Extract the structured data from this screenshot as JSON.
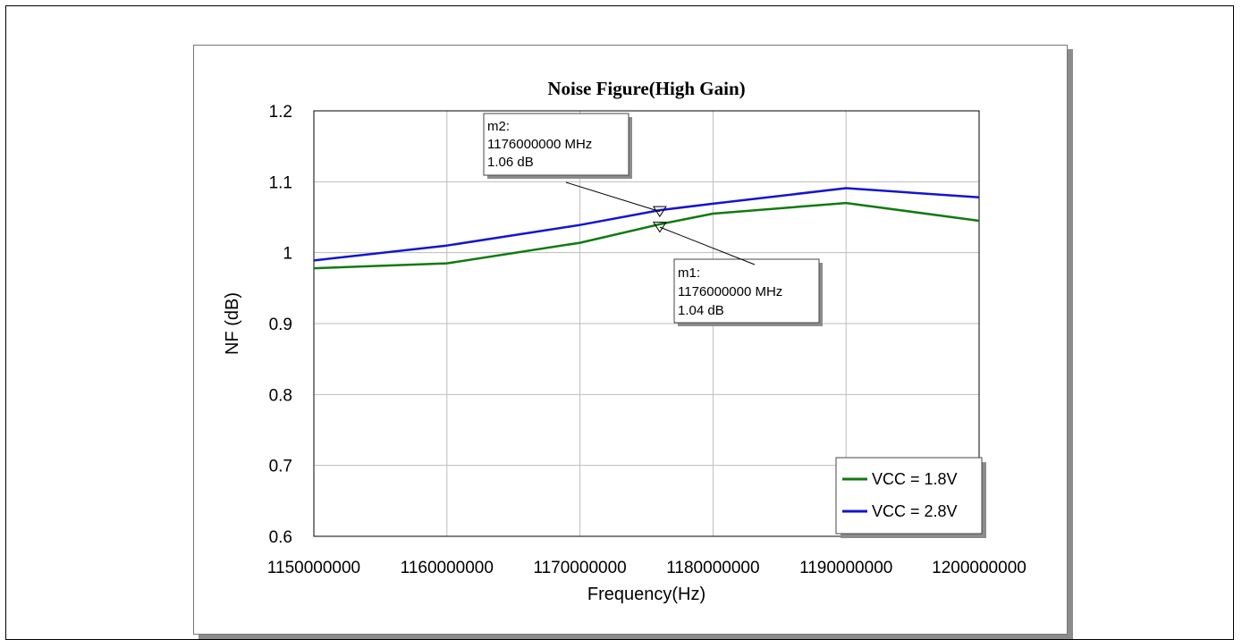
{
  "chart_data": {
    "type": "line",
    "title": "Noise Figure(High Gain)",
    "xlabel": "Frequency(Hz)",
    "ylabel": "NF (dB)",
    "xlim": [
      1150000000,
      1200000000
    ],
    "ylim": [
      0.6,
      1.2
    ],
    "x_ticks": [
      "1150000000",
      "1160000000",
      "1170000000",
      "1180000000",
      "1190000000",
      "1200000000"
    ],
    "y_ticks": [
      "0.6",
      "0.7",
      "0.8",
      "0.9",
      "1",
      "1.1",
      "1.2"
    ],
    "grid": true,
    "legend_position": "bottom-right",
    "series": [
      {
        "name": "VCC = 1.8V",
        "color": "#117a11",
        "x": [
          1150000000,
          1160000000,
          1170000000,
          1176000000,
          1180000000,
          1190000000,
          1200000000
        ],
        "y": [
          0.978,
          0.985,
          1.014,
          1.04,
          1.055,
          1.07,
          1.045
        ]
      },
      {
        "name": "VCC = 2.8V",
        "color": "#1414d2",
        "x": [
          1150000000,
          1160000000,
          1170000000,
          1176000000,
          1180000000,
          1190000000,
          1200000000
        ],
        "y": [
          0.989,
          1.01,
          1.039,
          1.06,
          1.069,
          1.091,
          1.078
        ]
      }
    ],
    "markers": [
      {
        "name": "m2",
        "label": "m2:",
        "freq_text": "1176000000 MHz",
        "value_text": "1.06 dB",
        "x": 1176000000,
        "y": 1.058,
        "series": 1
      },
      {
        "name": "m1",
        "label": "m1:",
        "freq_text": "1176000000 MHz",
        "value_text": "1.04 dB",
        "x": 1176000000,
        "y": 1.036,
        "series": 0
      }
    ]
  }
}
